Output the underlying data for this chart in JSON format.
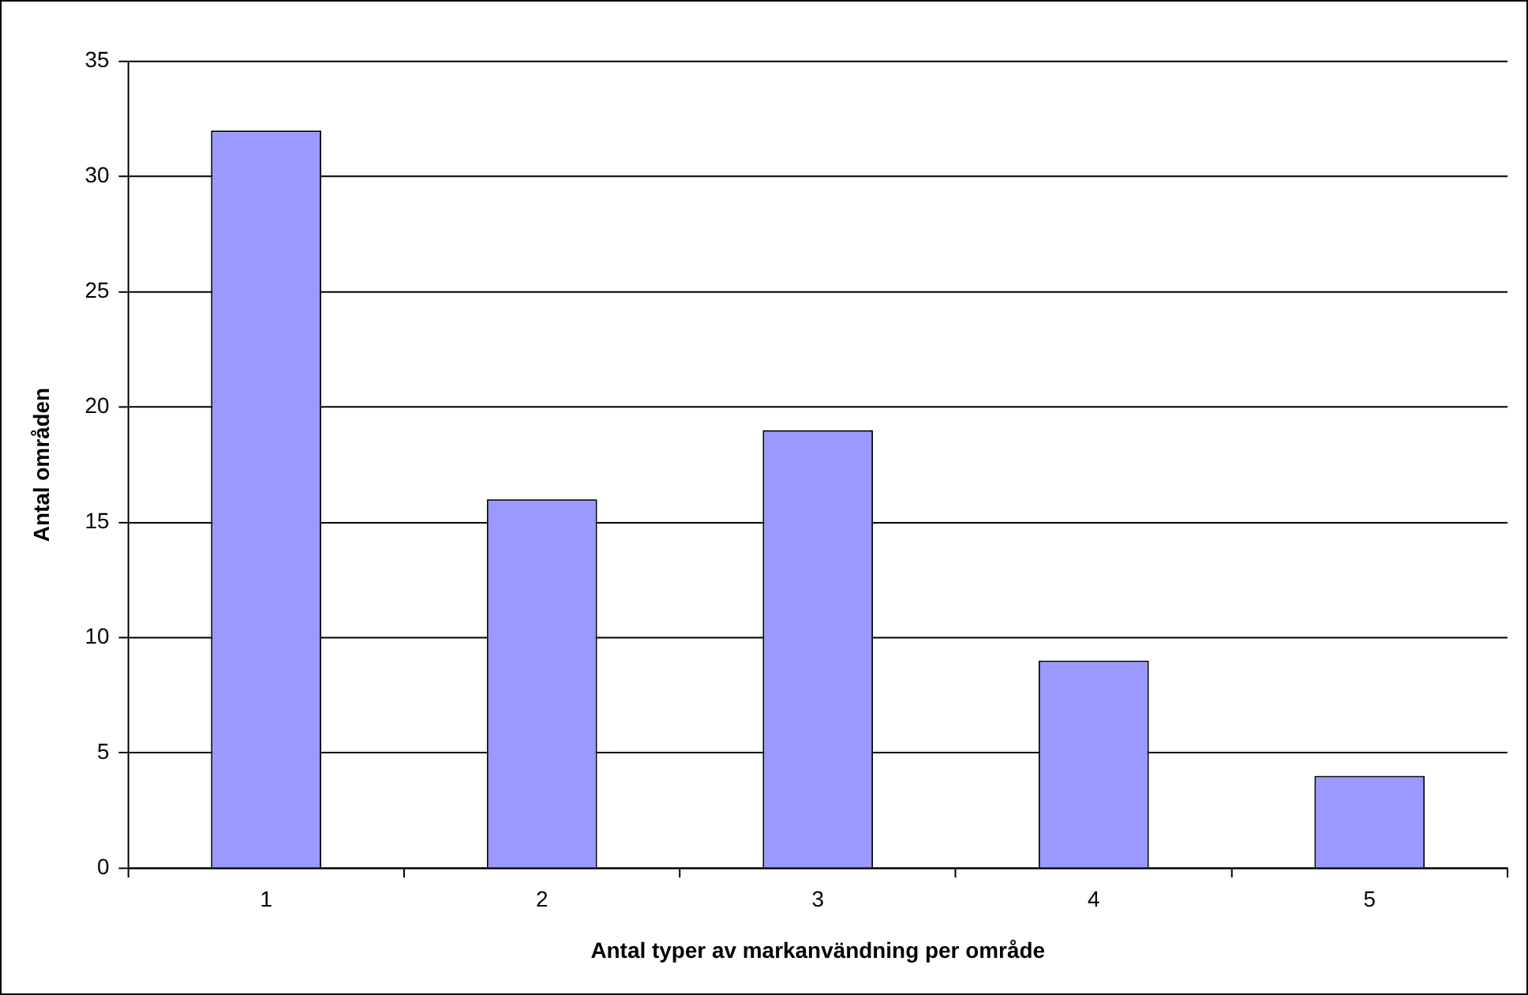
{
  "chart_data": {
    "type": "bar",
    "xlabel": "Antal typer av markanvändning per område",
    "ylabel": "Antal områden",
    "categories": [
      "1",
      "2",
      "3",
      "4",
      "5"
    ],
    "values": [
      32,
      16,
      19,
      9,
      4
    ],
    "color": "#9999ff",
    "ylim": [
      0,
      35
    ],
    "yticks": [
      0,
      5,
      10,
      15,
      20,
      25,
      30,
      35
    ],
    "grid": "y",
    "legend": false
  }
}
